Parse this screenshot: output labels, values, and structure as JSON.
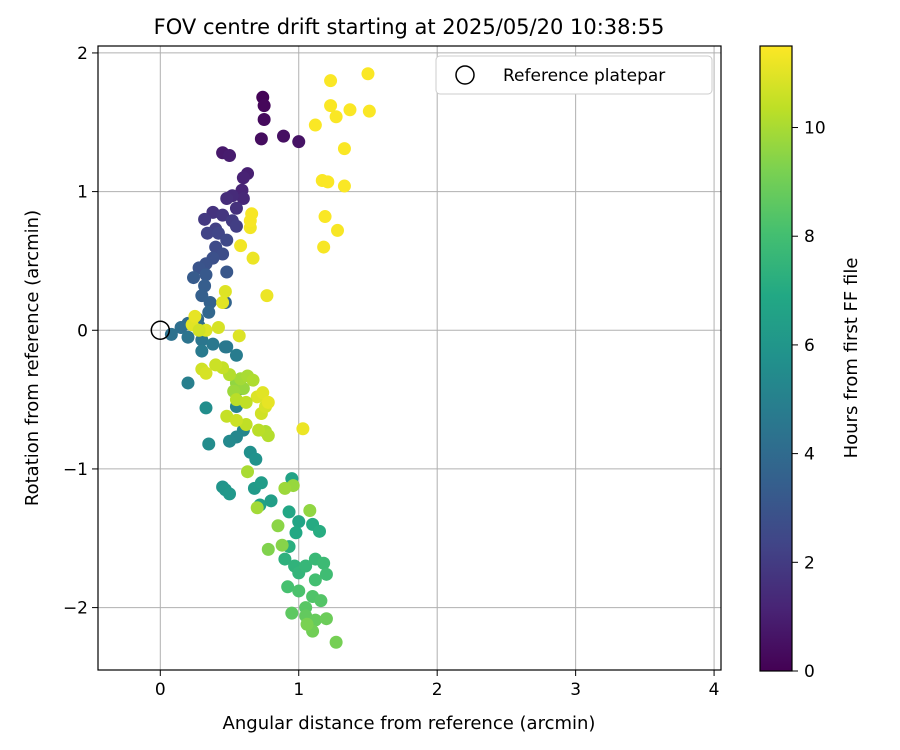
{
  "chart_data": {
    "type": "scatter",
    "title": "FOV centre drift starting at 2025/05/20 10:38:55",
    "xlabel": "Angular distance from reference (arcmin)",
    "ylabel": "Rotation from reference (arcmin)",
    "xlim": [
      -0.45,
      4.05
    ],
    "ylim": [
      -2.45,
      2.05
    ],
    "xticks": [
      0,
      1,
      2,
      3,
      4
    ],
    "yticks": [
      -2,
      -1,
      0,
      1,
      2
    ],
    "xtick_labels": [
      "0",
      "1",
      "2",
      "3",
      "4"
    ],
    "ytick_labels": [
      "−2",
      "−1",
      "0",
      "1",
      "2"
    ],
    "grid": true,
    "legend": {
      "placement": "top-right",
      "entries": [
        "Reference platepar"
      ]
    },
    "reference_point": {
      "x": 0,
      "y": 0,
      "marker": "open-circle",
      "color": "#000000"
    },
    "colorbar": {
      "label": "Hours from first FF file",
      "range": [
        0,
        11.5
      ],
      "ticks": [
        0,
        2,
        4,
        6,
        8,
        10
      ],
      "tick_labels": [
        "0",
        "2",
        "4",
        "6",
        "8",
        "10"
      ],
      "colormap": "viridis"
    },
    "series": [
      {
        "points": [
          [
            0.74,
            1.68,
            0.1
          ],
          [
            0.75,
            1.62,
            0.2
          ],
          [
            0.75,
            1.52,
            0.3
          ],
          [
            0.73,
            1.38,
            0.4
          ],
          [
            0.89,
            1.4,
            0.5
          ],
          [
            1.0,
            1.36,
            0.6
          ],
          [
            0.45,
            1.28,
            0.8
          ],
          [
            0.5,
            1.26,
            0.9
          ],
          [
            0.63,
            1.13,
            1.0
          ],
          [
            0.6,
            1.1,
            1.1
          ],
          [
            0.59,
            1.01,
            1.2
          ],
          [
            0.6,
            0.95,
            1.3
          ],
          [
            0.52,
            0.97,
            1.4
          ],
          [
            0.48,
            0.95,
            1.5
          ],
          [
            0.55,
            0.88,
            1.6
          ],
          [
            0.38,
            0.85,
            1.7
          ],
          [
            0.45,
            0.83,
            1.8
          ],
          [
            0.32,
            0.8,
            1.9
          ],
          [
            0.52,
            0.79,
            2.0
          ],
          [
            0.55,
            0.75,
            2.1
          ],
          [
            0.4,
            0.73,
            2.2
          ],
          [
            0.34,
            0.7,
            2.3
          ],
          [
            0.42,
            0.7,
            2.4
          ],
          [
            0.48,
            0.65,
            2.5
          ],
          [
            0.4,
            0.6,
            2.6
          ],
          [
            0.45,
            0.55,
            2.7
          ],
          [
            0.38,
            0.52,
            2.8
          ],
          [
            0.33,
            0.48,
            2.9
          ],
          [
            0.28,
            0.45,
            3.0
          ],
          [
            0.48,
            0.42,
            3.1
          ],
          [
            0.33,
            0.4,
            3.2
          ],
          [
            0.24,
            0.38,
            3.3
          ],
          [
            0.32,
            0.32,
            3.4
          ],
          [
            0.3,
            0.25,
            3.5
          ],
          [
            0.36,
            0.2,
            3.6
          ],
          [
            0.47,
            0.2,
            3.7
          ],
          [
            0.35,
            0.13,
            3.8
          ],
          [
            0.27,
            0.08,
            3.9
          ],
          [
            0.2,
            0.05,
            4.0
          ],
          [
            0.28,
            0.03,
            4.1
          ],
          [
            0.15,
            0.02,
            4.2
          ],
          [
            0.08,
            -0.03,
            4.3
          ],
          [
            0.2,
            -0.05,
            4.4
          ],
          [
            0.3,
            -0.07,
            4.5
          ],
          [
            0.38,
            -0.1,
            4.6
          ],
          [
            0.48,
            -0.12,
            4.7
          ],
          [
            0.55,
            -0.18,
            4.8
          ],
          [
            0.2,
            -0.38,
            4.9
          ],
          [
            0.47,
            -0.12,
            4.6
          ],
          [
            0.3,
            -0.15,
            4.7
          ],
          [
            0.58,
            -0.42,
            5.0
          ],
          [
            0.55,
            -0.55,
            5.1
          ],
          [
            0.6,
            -0.72,
            5.2
          ],
          [
            0.55,
            -0.77,
            5.3
          ],
          [
            0.5,
            -0.8,
            5.4
          ],
          [
            0.35,
            -0.82,
            5.5
          ],
          [
            0.33,
            -0.56,
            5.6
          ],
          [
            0.65,
            -0.88,
            5.7
          ],
          [
            0.69,
            -0.93,
            5.8
          ],
          [
            0.45,
            -1.13,
            5.9
          ],
          [
            0.47,
            -1.15,
            6.0
          ],
          [
            0.5,
            -1.18,
            6.1
          ],
          [
            0.68,
            -1.14,
            6.2
          ],
          [
            0.73,
            -1.1,
            6.3
          ],
          [
            0.8,
            -1.23,
            6.4
          ],
          [
            0.72,
            -1.26,
            6.5
          ],
          [
            0.95,
            -1.07,
            6.6
          ],
          [
            1.0,
            -1.38,
            6.7
          ],
          [
            0.93,
            -1.31,
            6.8
          ],
          [
            0.98,
            -1.46,
            6.9
          ],
          [
            1.1,
            -1.4,
            7.0
          ],
          [
            1.15,
            -1.45,
            7.1
          ],
          [
            0.93,
            -1.56,
            7.2
          ],
          [
            0.9,
            -1.65,
            7.3
          ],
          [
            0.97,
            -1.7,
            7.4
          ],
          [
            1.0,
            -1.75,
            7.5
          ],
          [
            1.05,
            -1.7,
            7.6
          ],
          [
            1.12,
            -1.65,
            7.7
          ],
          [
            1.18,
            -1.68,
            7.8
          ],
          [
            1.2,
            -1.76,
            7.9
          ],
          [
            1.12,
            -1.8,
            8.0
          ],
          [
            0.92,
            -1.85,
            8.1
          ],
          [
            1.0,
            -1.88,
            8.2
          ],
          [
            1.1,
            -1.92,
            8.3
          ],
          [
            1.16,
            -1.95,
            8.4
          ],
          [
            1.05,
            -2.0,
            8.5
          ],
          [
            0.95,
            -2.04,
            8.6
          ],
          [
            1.05,
            -2.06,
            8.7
          ],
          [
            1.12,
            -2.09,
            8.8
          ],
          [
            1.2,
            -2.08,
            8.9
          ],
          [
            1.1,
            -2.17,
            9.0
          ],
          [
            1.27,
            -2.25,
            9.1
          ],
          [
            1.06,
            -2.12,
            9.2
          ],
          [
            0.78,
            -1.58,
            9.3
          ],
          [
            0.88,
            -1.55,
            9.4
          ],
          [
            0.85,
            -1.41,
            9.5
          ],
          [
            1.08,
            -1.3,
            9.6
          ],
          [
            0.96,
            -1.12,
            9.7
          ],
          [
            0.9,
            -1.14,
            9.8
          ],
          [
            0.7,
            -1.28,
            9.9
          ],
          [
            0.63,
            -1.02,
            10.0
          ],
          [
            0.76,
            -0.73,
            10.1
          ],
          [
            0.78,
            -0.76,
            10.2
          ],
          [
            0.71,
            -0.72,
            10.3
          ],
          [
            0.62,
            -0.68,
            10.4
          ],
          [
            0.48,
            -0.62,
            10.5
          ],
          [
            0.55,
            -0.65,
            10.6
          ],
          [
            0.73,
            -0.6,
            10.7
          ],
          [
            0.76,
            -0.55,
            10.8
          ],
          [
            0.7,
            -0.48,
            10.9
          ],
          [
            0.74,
            -0.45,
            11.0
          ],
          [
            0.78,
            -0.52,
            11.1
          ],
          [
            1.03,
            -0.71,
            11.2
          ]
        ],
        "note_color_value": "third value in each point is hours from first FF file"
      },
      {
        "points": [
          [
            0.55,
            -0.38,
            9.6
          ],
          [
            0.6,
            -0.42,
            9.7
          ],
          [
            0.53,
            -0.44,
            9.8
          ],
          [
            0.58,
            -0.35,
            9.9
          ],
          [
            0.63,
            -0.33,
            10.0
          ],
          [
            0.67,
            -0.36,
            10.1
          ],
          [
            0.5,
            -0.32,
            10.2
          ],
          [
            0.55,
            -0.5,
            10.3
          ],
          [
            0.62,
            -0.52,
            10.4
          ],
          [
            0.45,
            -0.27,
            10.5
          ],
          [
            0.4,
            -0.25,
            10.6
          ],
          [
            0.3,
            -0.28,
            10.7
          ],
          [
            0.33,
            -0.31,
            10.8
          ],
          [
            0.57,
            -0.04,
            10.9
          ],
          [
            0.47,
            0.28,
            10.95
          ],
          [
            0.45,
            0.2,
            11.0
          ],
          [
            0.42,
            0.02,
            10.8
          ],
          [
            0.33,
            0.0,
            10.9
          ],
          [
            0.23,
            0.04,
            11.0
          ],
          [
            0.25,
            0.1,
            11.1
          ],
          [
            0.28,
            0.0,
            10.7
          ],
          [
            0.77,
            0.25,
            11.2
          ],
          [
            0.67,
            0.52,
            11.2
          ],
          [
            0.58,
            0.61,
            11.3
          ],
          [
            0.65,
            0.74,
            11.3
          ],
          [
            0.65,
            0.79,
            11.4
          ],
          [
            0.66,
            0.84,
            11.4
          ],
          [
            1.18,
            0.6,
            11.4
          ],
          [
            1.28,
            0.72,
            11.4
          ],
          [
            1.19,
            0.82,
            11.45
          ],
          [
            1.33,
            1.04,
            11.45
          ],
          [
            1.17,
            1.08,
            11.45
          ],
          [
            1.21,
            1.07,
            11.45
          ],
          [
            1.33,
            1.31,
            11.45
          ],
          [
            1.12,
            1.48,
            11.45
          ],
          [
            1.27,
            1.54,
            11.45
          ],
          [
            1.37,
            1.59,
            11.45
          ],
          [
            1.51,
            1.58,
            11.45
          ],
          [
            1.23,
            1.62,
            11.45
          ],
          [
            1.23,
            1.8,
            11.45
          ],
          [
            1.5,
            1.85,
            11.45
          ]
        ]
      }
    ]
  }
}
